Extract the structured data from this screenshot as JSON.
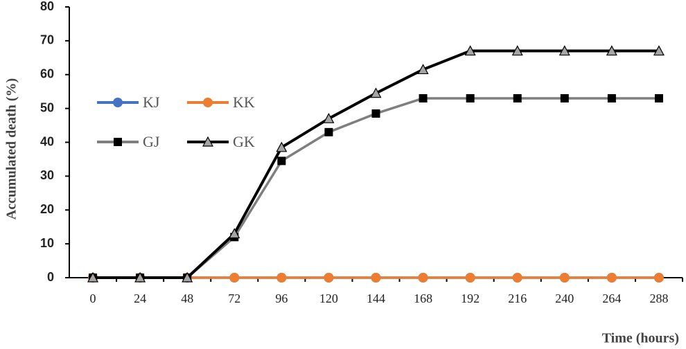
{
  "chart_data": {
    "type": "line",
    "x_label": "Time (hours)",
    "y_label": "Accumulated death (%)",
    "categories": [
      "0",
      "24",
      "48",
      "72",
      "96",
      "120",
      "144",
      "168",
      "192",
      "216",
      "240",
      "264",
      "288"
    ],
    "series": [
      {
        "name": "KJ",
        "color": "#4472c4",
        "marker": "circle",
        "marker_color": "#4472c4",
        "values": [
          0,
          0,
          0,
          0,
          0,
          0,
          0,
          0,
          0,
          0,
          0,
          0,
          0
        ]
      },
      {
        "name": "KK",
        "color": "#ed7d31",
        "marker": "circle",
        "marker_color": "#ed7d31",
        "values": [
          0,
          0,
          0,
          0,
          0,
          0,
          0,
          0,
          0,
          0,
          0,
          0,
          0
        ]
      },
      {
        "name": "GJ",
        "color": "#7f7f7f",
        "marker": "square",
        "marker_color": "#000000",
        "values": [
          0,
          0,
          0,
          12,
          34.5,
          43,
          48.5,
          53,
          53,
          53,
          53,
          53,
          53
        ]
      },
      {
        "name": "GK",
        "color": "#000000",
        "marker": "triangle",
        "marker_color": "#a5a5a5",
        "values": [
          0,
          0,
          0,
          13,
          38.5,
          47,
          54.5,
          61.5,
          67,
          67,
          67,
          67,
          67
        ]
      }
    ],
    "ylim": [
      0,
      80
    ],
    "yticks": [
      0,
      10,
      20,
      30,
      40,
      50,
      60,
      70,
      80
    ],
    "grid": false
  }
}
